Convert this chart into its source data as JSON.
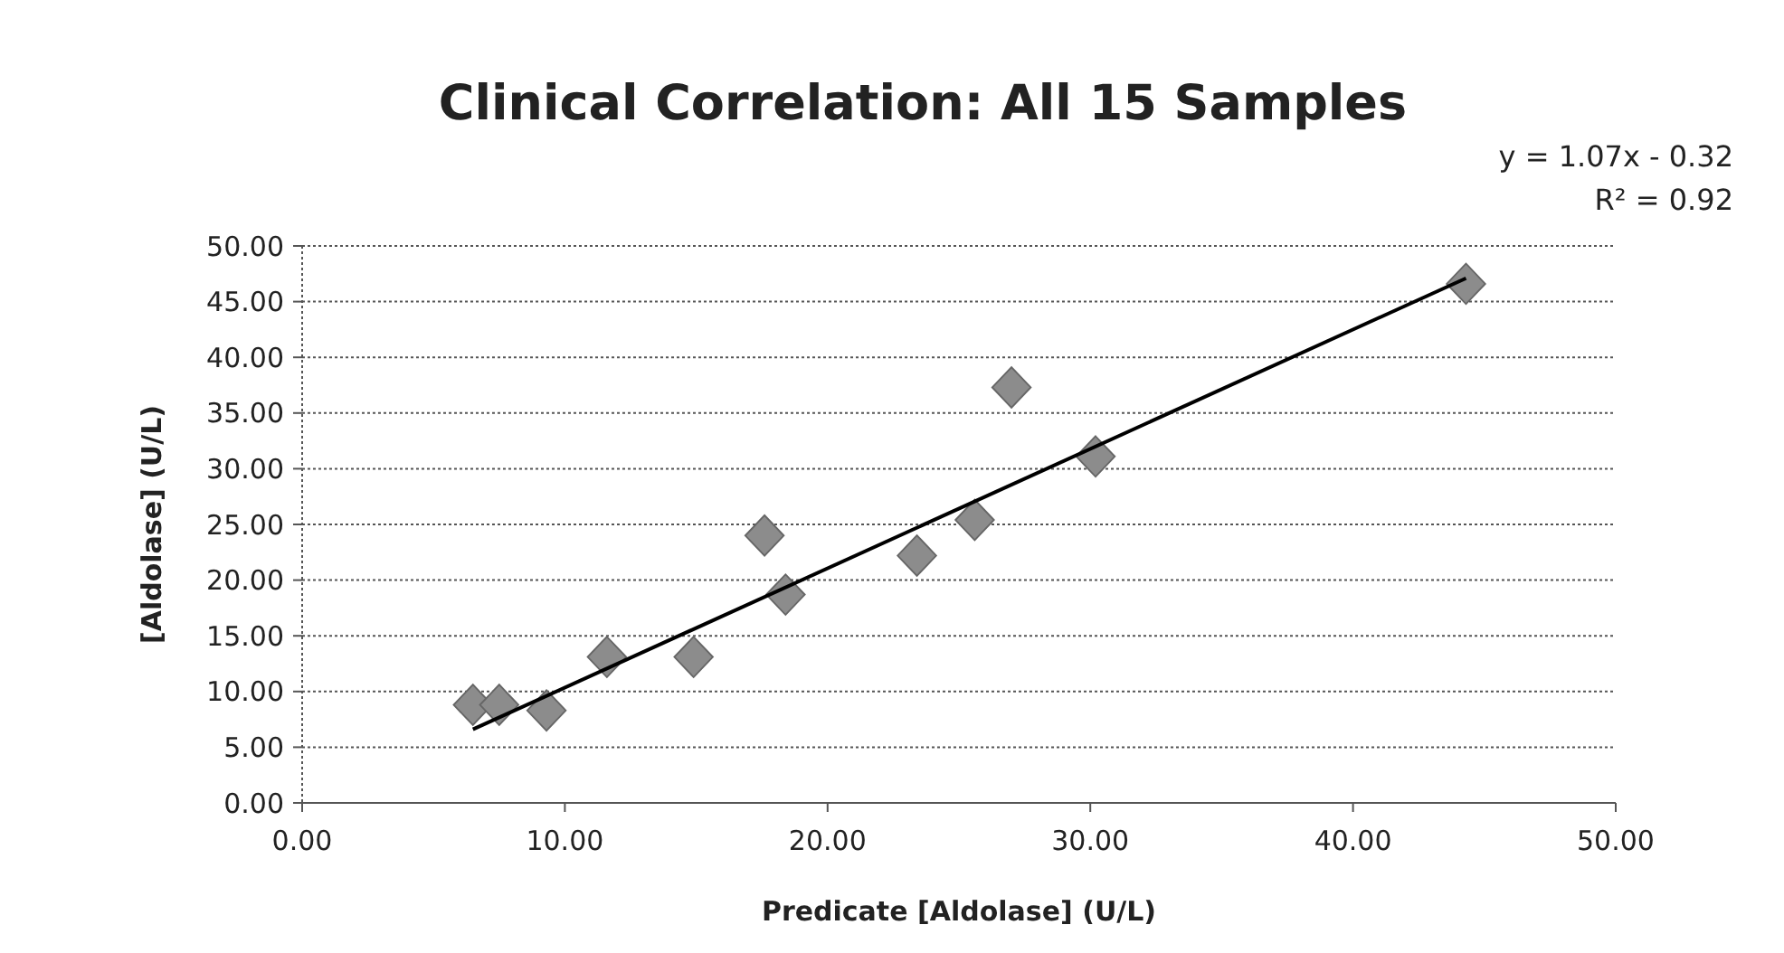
{
  "chart_data": {
    "type": "scatter",
    "title": "Clinical Correlation: All 15 Samples",
    "xlabel": "Predicate [Aldolase] (U/L)",
    "ylabel": "[Aldolase] (U/L)",
    "annotations": [
      "y = 1.07x - 0.32",
      "R² = 0.92"
    ],
    "series": [
      {
        "color": "#8c8c8c",
        "marker": "diamond",
        "x": [
          6.5,
          7.5,
          9.3,
          11.6,
          14.9,
          17.6,
          18.4,
          23.4,
          25.6,
          27.0,
          30.2,
          44.3
        ],
        "values": [
          8.8,
          8.8,
          8.3,
          13.1,
          13.1,
          24.0,
          18.7,
          22.2,
          25.4,
          37.3,
          31.1,
          46.6
        ]
      },
      {
        "type": "line",
        "color": "#000000",
        "line_style": "solid",
        "x": [
          6.5,
          44.3
        ],
        "values": [
          6.6,
          47.1
        ]
      }
    ],
    "xlim": [
      0,
      50
    ],
    "xticks": [
      {
        "value": 0,
        "label": "0.00"
      },
      {
        "value": 10,
        "label": "10.00"
      },
      {
        "value": 20,
        "label": "20.00"
      },
      {
        "value": 30,
        "label": "30.00"
      },
      {
        "value": 40,
        "label": "40.00"
      },
      {
        "value": 50,
        "label": "50.00"
      }
    ],
    "ylim": [
      0,
      50
    ],
    "yticks": [
      {
        "value": 0,
        "label": "0.00"
      },
      {
        "value": 5,
        "label": "5.00"
      },
      {
        "value": 10,
        "label": "10.00"
      },
      {
        "value": 15,
        "label": "15.00"
      },
      {
        "value": 20,
        "label": "20.00"
      },
      {
        "value": 25,
        "label": "25.00"
      },
      {
        "value": 30,
        "label": "30.00"
      },
      {
        "value": 35,
        "label": "35.00"
      },
      {
        "value": 40,
        "label": "40.00"
      },
      {
        "value": 45,
        "label": "45.00"
      },
      {
        "value": 50,
        "label": "50.00"
      }
    ],
    "grid": "y"
  }
}
